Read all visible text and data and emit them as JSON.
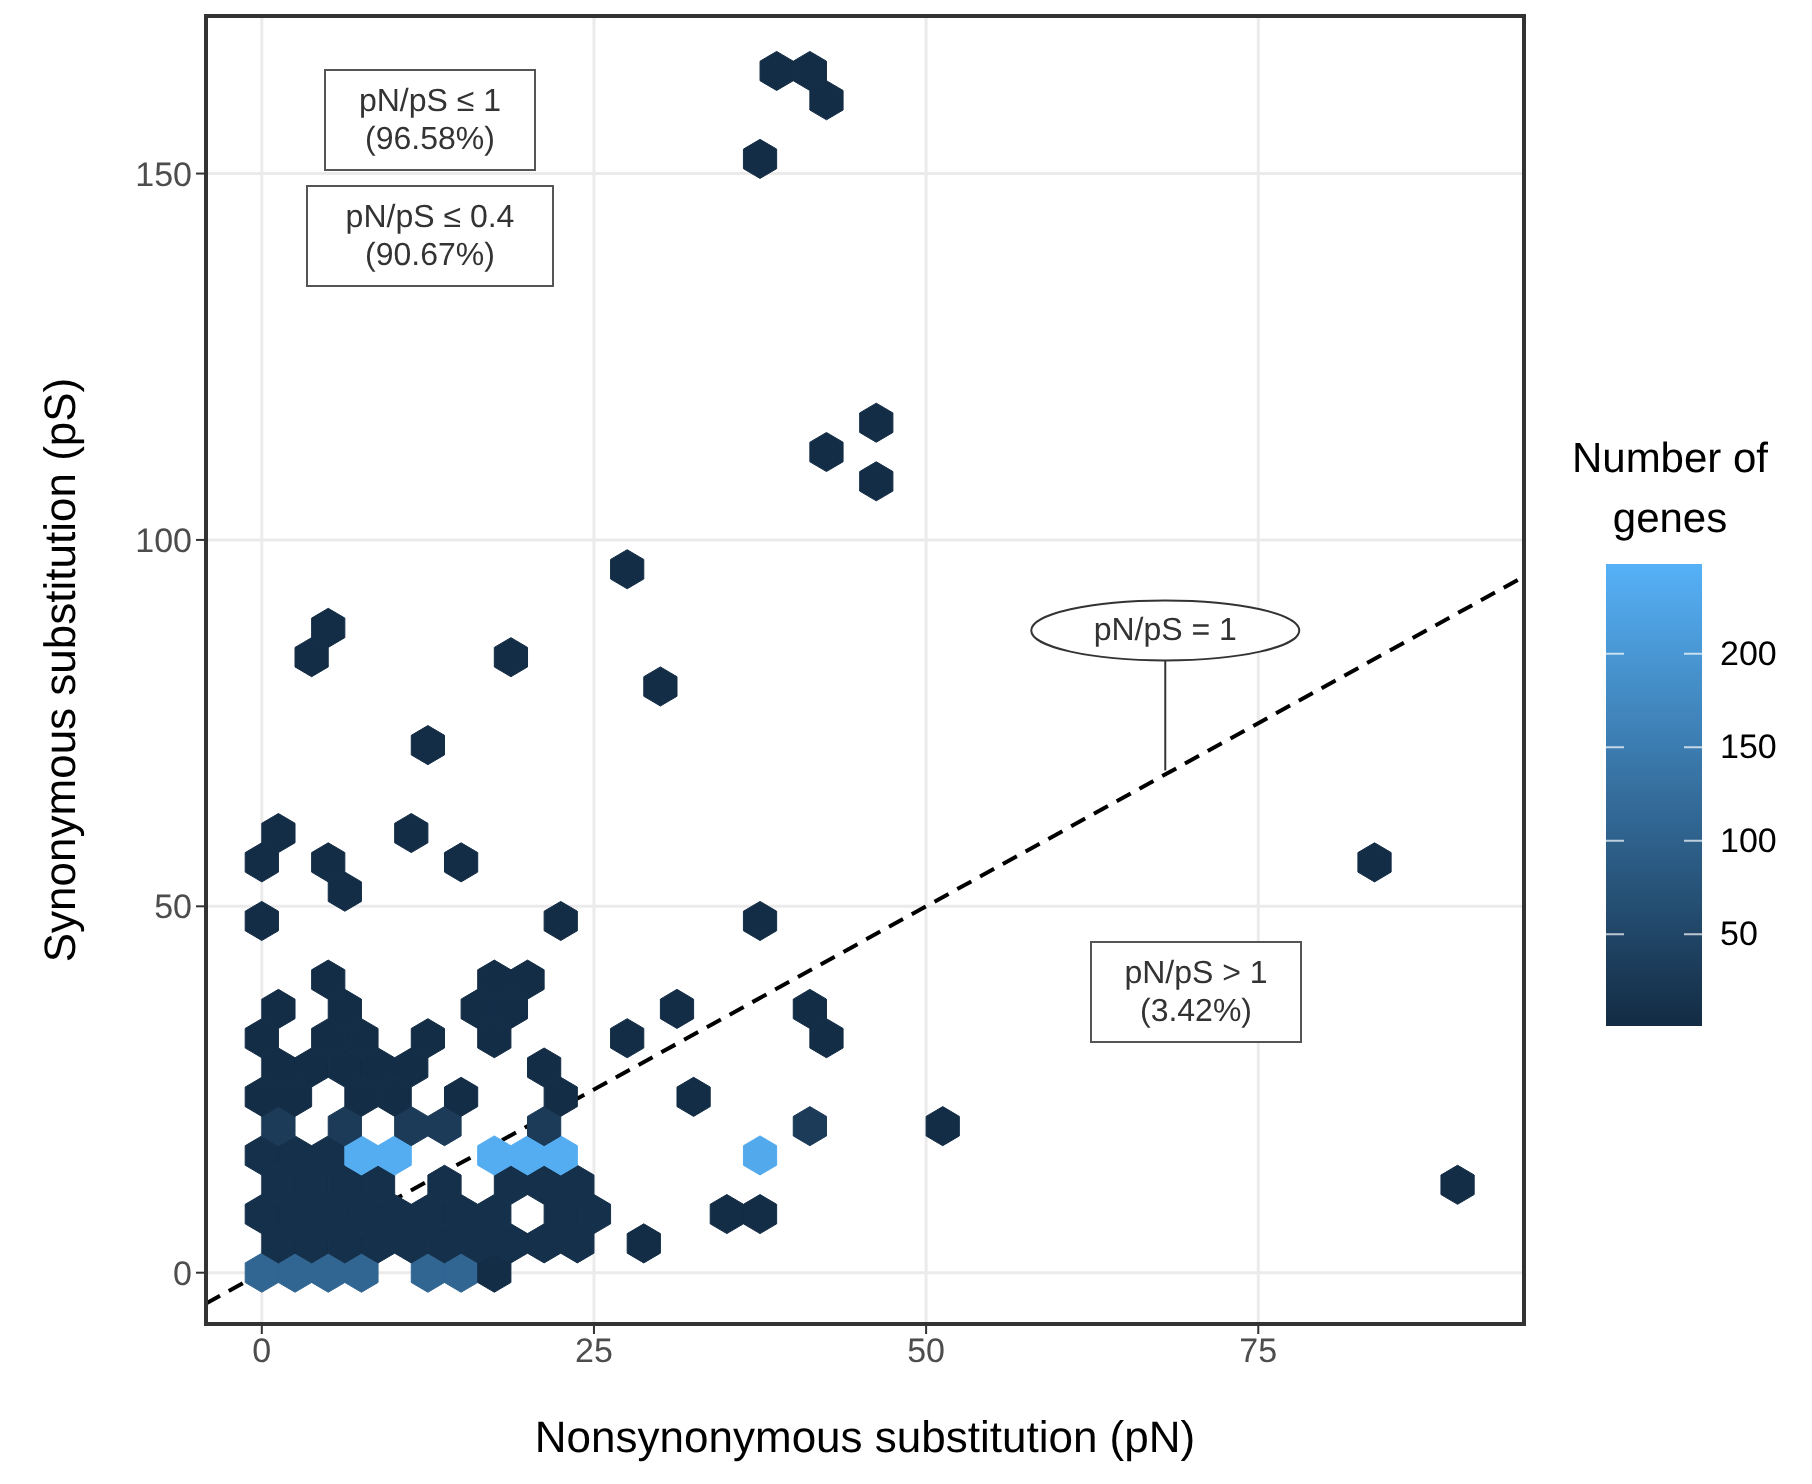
{
  "chart_data": {
    "type": "scatter",
    "xlabel": "Nonsynonymous substitution (pN)",
    "ylabel": "Synonymous substitution (pS)",
    "clabel": "Number of genes",
    "xlim": [
      -4.2,
      95
    ],
    "ylim": [
      -7,
      171.5
    ],
    "xticks": [
      0,
      25,
      50,
      75
    ],
    "yticks": [
      0,
      50,
      100,
      150
    ],
    "clim": [
      1,
      248
    ],
    "cticks": [
      50,
      100,
      150,
      200
    ],
    "grid": true,
    "series": [
      {
        "x": [
          0,
          2.5,
          5,
          7.5,
          12.5,
          15,
          17.5,
          1.25,
          3.75,
          6.25,
          8.75,
          11.25,
          13.75,
          16.25,
          18.75,
          21.25,
          23.75,
          28.75,
          0,
          2.5,
          5,
          7.5,
          10,
          12.5,
          15,
          17.5,
          22.5,
          25,
          35,
          37.5,
          1.25,
          3.75,
          6.25,
          8.75,
          13.75,
          18.75,
          21.25,
          23.75,
          0,
          2.5,
          5,
          7.5,
          10,
          17.5,
          20,
          22.5,
          37.5,
          1.25,
          6.25,
          11.25,
          13.75,
          21.25,
          41.25,
          51.25,
          0,
          2.5,
          7.5,
          10,
          15,
          22.5,
          32.5,
          1.25,
          3.75,
          6.25,
          8.75,
          11.25,
          21.25,
          0,
          5,
          7.5,
          12.5,
          17.5,
          27.5,
          42.5,
          1.25,
          6.25,
          16.25,
          18.75,
          31.25,
          41.25,
          5,
          17.5,
          20,
          0,
          22.5,
          37.5,
          6.25,
          0,
          5,
          15,
          83.75,
          1.25,
          11.25,
          12.5,
          30,
          3.75,
          18.75,
          5,
          27.5,
          46.25,
          42.5,
          46.25,
          37.5,
          42.5,
          38.75,
          41.25,
          90
        ],
        "values": [
          0,
          0,
          0,
          0,
          0,
          0,
          0,
          4,
          4,
          4,
          4,
          4,
          4,
          4,
          4,
          4,
          4,
          4,
          8,
          8,
          8,
          8,
          8,
          8,
          8,
          8,
          8,
          8,
          8,
          8,
          12,
          12,
          12,
          12,
          12,
          12,
          12,
          12,
          16,
          16,
          16,
          16,
          16,
          16,
          16,
          16,
          16,
          20,
          20,
          20,
          20,
          20,
          20,
          20,
          24,
          24,
          24,
          24,
          24,
          24,
          24,
          28,
          28,
          28,
          28,
          28,
          28,
          32,
          32,
          32,
          32,
          32,
          32,
          32,
          36,
          36,
          36,
          36,
          36,
          36,
          40,
          40,
          40,
          48,
          48,
          48,
          52,
          56,
          56,
          56,
          56,
          60,
          60,
          72,
          80,
          84,
          84,
          88,
          96,
          108,
          112,
          116,
          152,
          160,
          164,
          164,
          12
        ],
        "cvalues": [
          110,
          110,
          110,
          110,
          110,
          110,
          5,
          10,
          10,
          10,
          10,
          10,
          10,
          10,
          10,
          10,
          10,
          5,
          10,
          10,
          10,
          10,
          10,
          10,
          10,
          10,
          10,
          10,
          5,
          5,
          10,
          10,
          10,
          10,
          10,
          10,
          10,
          10,
          10,
          10,
          10,
          240,
          240,
          240,
          240,
          240,
          235,
          30,
          30,
          30,
          30,
          30,
          30,
          5,
          5,
          5,
          5,
          5,
          5,
          5,
          5,
          5,
          5,
          5,
          5,
          5,
          5,
          5,
          5,
          5,
          5,
          5,
          5,
          5,
          5,
          5,
          5,
          5,
          5,
          5,
          5,
          5,
          5,
          5,
          5,
          5,
          5,
          5,
          5,
          5,
          5,
          5,
          5,
          5,
          5,
          5,
          5,
          5,
          5,
          5,
          5,
          5,
          5,
          5,
          5,
          5,
          5
        ],
        "colors": [
          "#316692",
          "#316692",
          "#316692",
          "#316692",
          "#316692",
          "#316692",
          "#142d46",
          "#15304a",
          "#15304a",
          "#15304a",
          "#15304a",
          "#15304a",
          "#15304a",
          "#15304a",
          "#15304a",
          "#15304a",
          "#15304a",
          "#142d46",
          "#15304a",
          "#15304a",
          "#15304a",
          "#15304a",
          "#15304a",
          "#15304a",
          "#15304a",
          "#15304a",
          "#15304a",
          "#15304a",
          "#142d46",
          "#142d46",
          "#15304a",
          "#15304a",
          "#15304a",
          "#15304a",
          "#15304a",
          "#15304a",
          "#15304a",
          "#15304a",
          "#15304a",
          "#15304a",
          "#15304a",
          "#54adf1",
          "#54adf1",
          "#54adf1",
          "#54adf1",
          "#54adf1",
          "#52aaed",
          "#1b3b58",
          "#1b3b58",
          "#1b3b58",
          "#1b3b58",
          "#1b3b58",
          "#1b3b58",
          "#142d46",
          "#142d46",
          "#142d46",
          "#142d46",
          "#142d46",
          "#142d46",
          "#142d46",
          "#142d46",
          "#142d46",
          "#142d46",
          "#142d46",
          "#142d46",
          "#142d46",
          "#142d46",
          "#142d46",
          "#142d46",
          "#142d46",
          "#142d46",
          "#142d46",
          "#142d46",
          "#142d46",
          "#142d46",
          "#142d46",
          "#142d46",
          "#142d46",
          "#142d46",
          "#142d46",
          "#142d46",
          "#142d46",
          "#142d46",
          "#142d46",
          "#142d46",
          "#142d46",
          "#142d46",
          "#142d46",
          "#142d46",
          "#142d46",
          "#142d46",
          "#142d46",
          "#142d46",
          "#142d46",
          "#142d46",
          "#142d46",
          "#142d46",
          "#142d46",
          "#142d46",
          "#142d46",
          "#142d46",
          "#142d46",
          "#142d46",
          "#142d46",
          "#142d46",
          "#142d46",
          "#142d46"
        ]
      },
      {
        "type": "line",
        "x": [
          -4.2,
          95
        ],
        "values": [
          -4.2,
          95
        ],
        "color": "#000000",
        "line_style": "dashed"
      }
    ],
    "annotations": [
      {
        "text": "pN/pS = 1",
        "x": 68,
        "y": 68
      },
      "pN/pS ≤ 1\n(96.58%)",
      "pN/pS ≤ 0.4\n(90.67%)",
      "pN/pS > 1\n(3.42%)"
    ]
  }
}
